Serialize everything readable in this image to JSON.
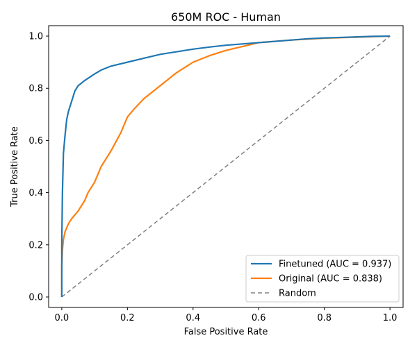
{
  "chart_data": {
    "type": "line",
    "title": "650M ROC - Human",
    "xlabel": "False Positive Rate",
    "ylabel": "True Positive Rate",
    "xlim": [
      -0.04,
      1.04
    ],
    "ylim": [
      -0.04,
      1.04
    ],
    "xticks": [
      0.0,
      0.2,
      0.4,
      0.6,
      0.8,
      1.0
    ],
    "yticks": [
      0.0,
      0.2,
      0.4,
      0.6,
      0.8,
      1.0
    ],
    "xtick_labels": [
      "0.0",
      "0.2",
      "0.4",
      "0.6",
      "0.8",
      "1.0"
    ],
    "ytick_labels": [
      "0.0",
      "0.2",
      "0.4",
      "0.6",
      "0.8",
      "1.0"
    ],
    "grid": false,
    "legend_position": "lower-right",
    "series": [
      {
        "name": "Finetuned (AUC = 0.937)",
        "color": "#1f77b4",
        "style": "solid",
        "x": [
          0.0,
          0.0,
          0.002,
          0.005,
          0.01,
          0.015,
          0.02,
          0.03,
          0.04,
          0.05,
          0.07,
          0.1,
          0.12,
          0.15,
          0.2,
          0.25,
          0.3,
          0.35,
          0.4,
          0.45,
          0.5,
          0.55,
          0.6,
          0.65,
          0.7,
          0.75,
          0.8,
          0.85,
          0.9,
          0.95,
          1.0
        ],
        "y": [
          0.0,
          0.2,
          0.4,
          0.55,
          0.62,
          0.68,
          0.71,
          0.75,
          0.79,
          0.81,
          0.83,
          0.855,
          0.87,
          0.885,
          0.9,
          0.915,
          0.93,
          0.94,
          0.95,
          0.958,
          0.965,
          0.97,
          0.975,
          0.98,
          0.985,
          0.99,
          0.993,
          0.995,
          0.997,
          0.999,
          1.0
        ]
      },
      {
        "name": "Original (AUC = 0.838)",
        "color": "#ff7f0e",
        "style": "solid",
        "x": [
          0.0,
          0.0,
          0.002,
          0.005,
          0.01,
          0.02,
          0.03,
          0.04,
          0.05,
          0.06,
          0.07,
          0.08,
          0.1,
          0.12,
          0.15,
          0.18,
          0.2,
          0.22,
          0.25,
          0.3,
          0.35,
          0.4,
          0.45,
          0.5,
          0.55,
          0.6,
          0.7,
          0.8,
          0.9,
          1.0
        ],
        "y": [
          0.0,
          0.12,
          0.18,
          0.22,
          0.25,
          0.28,
          0.3,
          0.315,
          0.33,
          0.35,
          0.37,
          0.4,
          0.44,
          0.5,
          0.56,
          0.63,
          0.69,
          0.72,
          0.76,
          0.81,
          0.86,
          0.9,
          0.925,
          0.945,
          0.96,
          0.975,
          0.985,
          0.992,
          0.996,
          1.0
        ]
      },
      {
        "name": "Random",
        "color": "#808080",
        "style": "dashed",
        "x": [
          0.0,
          1.0
        ],
        "y": [
          0.0,
          1.0
        ]
      }
    ]
  }
}
